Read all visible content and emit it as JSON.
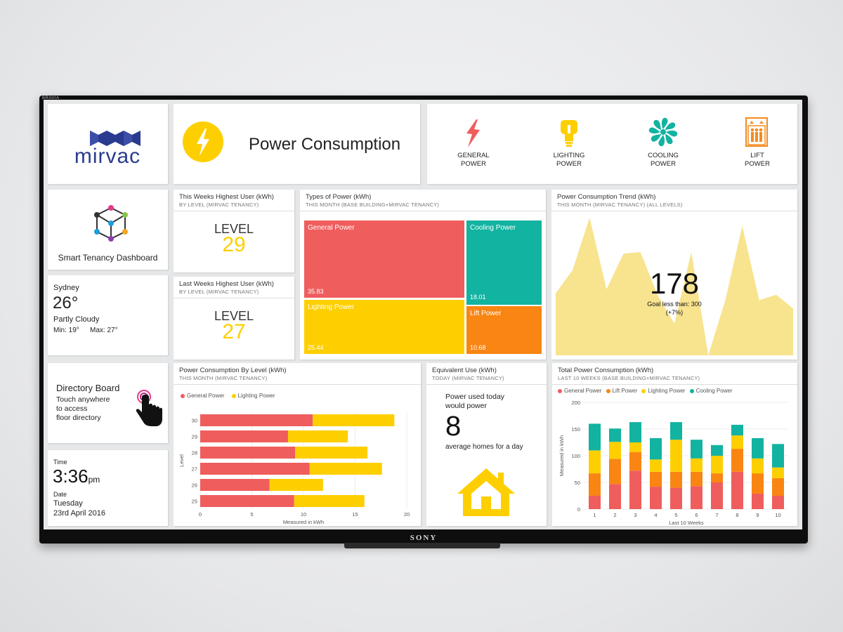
{
  "brand": {
    "logo_text": "mirvac",
    "bezel": "BRAVIA",
    "maker": "SONY"
  },
  "header": {
    "title": "Power Consumption"
  },
  "power_types": [
    {
      "label": "GENERAL\nPOWER",
      "icon": "lightning-bolt-icon",
      "color": "#ef5d5d"
    },
    {
      "label": "LIGHTING\nPOWER",
      "icon": "lightbulb-icon",
      "color": "#f2c400"
    },
    {
      "label": "COOLING\nPOWER",
      "icon": "fan-icon",
      "color": "#12b3a0"
    },
    {
      "label": "LIFT\nPOWER",
      "icon": "elevator-icon",
      "color": "#f58a1f"
    }
  ],
  "smart_tenancy": {
    "label": "Smart Tenancy Dashboard"
  },
  "weather": {
    "city": "Sydney",
    "temp": "26°",
    "condition": "Partly Cloudy",
    "min": "Min: 19°",
    "max": "Max: 27°"
  },
  "directory": {
    "title": "Directory Board",
    "line1": "Touch anywhere",
    "line2": "to access",
    "line3": "floor directory"
  },
  "clock": {
    "time_label": "Time",
    "time": "3:36",
    "ampm": "pm",
    "date_label": "Date",
    "day": "Tuesday",
    "date": "23rd April 2016"
  },
  "this_week": {
    "title": "This Weeks Highest User (kWh)",
    "subtitle": "BY LEVEL (MIRVAC TENANCY)",
    "level_label": "LEVEL",
    "level": "29"
  },
  "last_week": {
    "title": "Last Weeks Highest User (kWh)",
    "subtitle": "BY LEVEL (MIRVAC TENANCY)",
    "level_label": "LEVEL",
    "level": "27"
  },
  "types_of_power": {
    "title": "Types of Power (kWh)",
    "subtitle": "THIS MONTH (BASE BUILDING+MIRVAC TENANCY)",
    "chart_data": {
      "type": "treemap",
      "items": [
        {
          "name": "General Power",
          "value": 35.83,
          "color": "#ef5d5d"
        },
        {
          "name": "Lighting Power",
          "value": 25.44,
          "color": "#fecf00"
        },
        {
          "name": "Cooling Power",
          "value": 18.01,
          "color": "#12b3a0"
        },
        {
          "name": "Lift Power",
          "value": 10.68,
          "color": "#f98512"
        }
      ]
    },
    "labels": {
      "general_name": "General Power",
      "general_value": "35.83",
      "lighting_name": "Lighting Power",
      "lighting_value": "25.44",
      "cooling_name": "Cooling Power",
      "cooling_value": "18.01",
      "lift_name": "Lift Power",
      "lift_value": "10.68"
    }
  },
  "trend": {
    "title": "Power Consumption Trend (kWh)",
    "subtitle": "THIS MONTH (MIRVAC TENANCY) (ALL LEVELS)",
    "big_value": "178",
    "goal": "Goal less than: 300",
    "change": "(+7%)",
    "chart_data": {
      "type": "area",
      "values": [
        45,
        62,
        100,
        48,
        74,
        75,
        44,
        23,
        75,
        0,
        40,
        94,
        40,
        44,
        34
      ],
      "ylim": [
        0,
        100
      ],
      "color": "#f8e38e"
    }
  },
  "by_level": {
    "title": "Power Consumption By Level (kWh)",
    "subtitle": "THIS MONTH (MIRVAC TENANCY)",
    "chart_data": {
      "type": "bar",
      "orientation": "horizontal",
      "stacked": true,
      "categories": [
        "30",
        "29",
        "28",
        "27",
        "26",
        "25"
      ],
      "series": [
        {
          "name": "General Power",
          "color": "#ef5d5d",
          "values": [
            10.9,
            8.5,
            9.2,
            10.6,
            6.7,
            9.1
          ]
        },
        {
          "name": "Lighting Power",
          "color": "#fecf00",
          "values": [
            7.9,
            5.8,
            7.0,
            7.0,
            5.2,
            6.8
          ]
        }
      ],
      "xlim": [
        0,
        20
      ],
      "xticks": [
        "0",
        "5",
        "10",
        "15",
        "20"
      ],
      "xlabel": "Measured in kWh",
      "ylabel": "Level"
    }
  },
  "equivalent": {
    "title": "Equivalent Use (kWh)",
    "subtitle": "TODAY (MIRVAC TENANCY)",
    "line1": "Power used today",
    "line2": "would power",
    "value": "8",
    "line3": "average homes for a day"
  },
  "total": {
    "title": "Total Power Consumption (kWh)",
    "subtitle": "LAST 10 WEEKS (BASE BUILDING+MIRVAC TENANCY)",
    "chart_data": {
      "type": "bar",
      "stacked": true,
      "categories": [
        "1",
        "2",
        "3",
        "4",
        "5",
        "6",
        "7",
        "8",
        "9",
        "10"
      ],
      "series": [
        {
          "name": "General Power",
          "color": "#ef5d5d",
          "values": [
            25,
            47,
            72,
            42,
            40,
            43,
            50,
            70,
            29,
            25
          ]
        },
        {
          "name": "Lift Power",
          "color": "#f98512",
          "values": [
            42,
            47,
            35,
            28,
            30,
            27,
            17,
            43,
            38,
            33
          ]
        },
        {
          "name": "Lighting Power",
          "color": "#fecf00",
          "values": [
            43,
            32,
            18,
            23,
            60,
            25,
            33,
            25,
            28,
            20
          ]
        },
        {
          "name": "Cooling Power",
          "color": "#12b3a0",
          "values": [
            50,
            25,
            38,
            40,
            33,
            35,
            20,
            20,
            38,
            44
          ]
        }
      ],
      "ylim": [
        0,
        200
      ],
      "yticks": [
        "0",
        "50",
        "100",
        "150",
        "200"
      ],
      "xlabel": "Last 10 Weeks",
      "ylabel": "Measured in kWh"
    }
  }
}
